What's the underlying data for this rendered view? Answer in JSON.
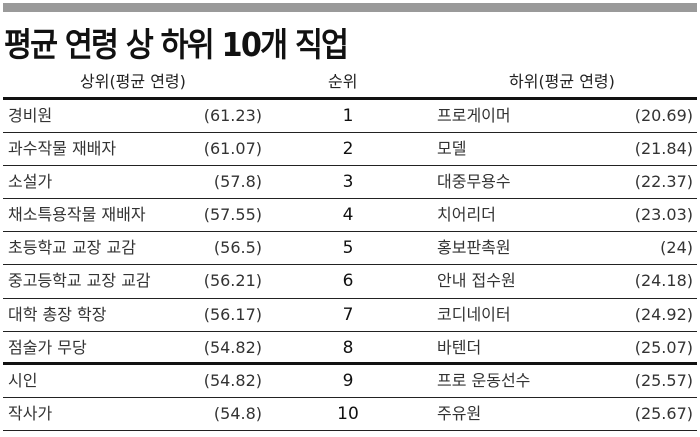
{
  "title": "평균 연령 상 하위 10개 직업",
  "chart_data": {
    "type": "table",
    "title": "평균 연령 상 하위 10개 직업",
    "columns": [
      "상위(평균 연령)",
      "순위",
      "하위(평균 연령)"
    ],
    "rows": [
      {
        "top_job": "경비원",
        "top_age": "(61.23)",
        "rank": "1",
        "bottom_job": "프로게이머",
        "bottom_age": "(20.69)"
      },
      {
        "top_job": "과수작물 재배자",
        "top_age": "(61.07)",
        "rank": "2",
        "bottom_job": "모델",
        "bottom_age": "(21.84)"
      },
      {
        "top_job": "소설가",
        "top_age": "(57.8)",
        "rank": "3",
        "bottom_job": "대중무용수",
        "bottom_age": "(22.37)"
      },
      {
        "top_job": "채소특용작물 재배자",
        "top_age": "(57.55)",
        "rank": "4",
        "bottom_job": "치어리더",
        "bottom_age": "(23.03)"
      },
      {
        "top_job": "초등학교 교장 교감",
        "top_age": "(56.5)",
        "rank": "5",
        "bottom_job": "홍보판촉원",
        "bottom_age": "(24)"
      },
      {
        "top_job": "중고등학교 교장 교감",
        "top_age": "(56.21)",
        "rank": "6",
        "bottom_job": "안내 접수원",
        "bottom_age": "(24.18)"
      },
      {
        "top_job": "대학 총장 학장",
        "top_age": "(56.17)",
        "rank": "7",
        "bottom_job": "코디네이터",
        "bottom_age": "(24.92)"
      },
      {
        "top_job": "점술가 무당",
        "top_age": "(54.82)",
        "rank": "8",
        "bottom_job": "바텐더",
        "bottom_age": "(25.07)"
      },
      {
        "top_job": "시인",
        "top_age": "(54.82)",
        "rank": "9",
        "bottom_job": "프로 운동선수",
        "bottom_age": "(25.57)"
      },
      {
        "top_job": "작사가",
        "top_age": "(54.8)",
        "rank": "10",
        "bottom_job": "주유원",
        "bottom_age": "(25.67)"
      }
    ]
  }
}
